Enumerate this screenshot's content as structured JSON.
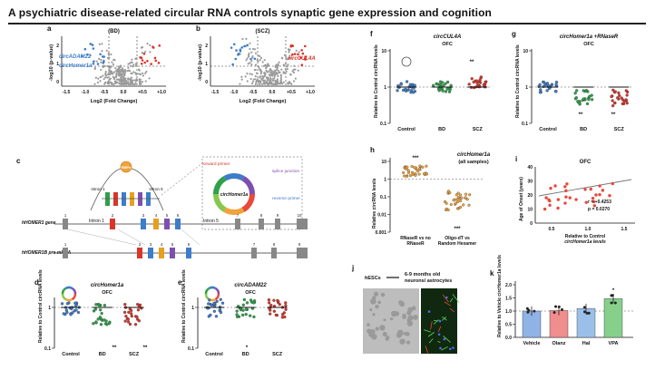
{
  "header": {
    "title": "A psychiatric disease-related circular RNA controls synaptic gene expression and cognition"
  },
  "panels": {
    "a": {
      "letter": "a",
      "label": "(BD)",
      "ylabel": "-log10 (p-value)",
      "xlabel": "Log2 (Fold Change)",
      "xticks": [
        "-1.5",
        "-1.0",
        "-0.5",
        "0.0",
        "+0.5",
        "+1.0"
      ],
      "yticks": [
        "2",
        "1",
        "0"
      ],
      "annotations": [
        "circADAM22",
        "circHomer1a"
      ]
    },
    "b": {
      "letter": "b",
      "label": "(SCZ)",
      "ylabel": "-log10 (p-value)",
      "xlabel": "Log2 (Fold Change)",
      "xticks": [
        "-1.5",
        "-1.0",
        "-0.5",
        "0.0",
        "+0.5",
        "+1.0"
      ],
      "yticks": [
        "2",
        "1",
        "0"
      ],
      "annotations": [
        "circCUL4A"
      ]
    },
    "c": {
      "letter": "c",
      "rbp": "RBPs",
      "intron1": "Intron 1",
      "intron5": "Intron 5",
      "ring_label": "circHomer1a",
      "forward_primer": "forward primer",
      "splice_junction": "splice junction",
      "reverse_primer": "reverse primer",
      "gene_label": "hHOMER1 gene",
      "pre_label": "hHOMER1B pre-mRNA",
      "exons_gene": [
        "1",
        "2",
        "3",
        "4",
        "5",
        "6",
        "7",
        "8",
        "9",
        "10"
      ],
      "exons_pre": [
        "1",
        "2",
        "3",
        "4",
        "5",
        "6",
        "7",
        "8",
        "9"
      ]
    },
    "d": {
      "letter": "d",
      "title": "circHomer1a",
      "subtitle": "OFC",
      "ylabel": "Relative to Control circRNA levels",
      "categories": [
        "Control",
        "BD",
        "SCZ"
      ],
      "yticks": [
        "1",
        "0.1"
      ],
      "stars": [
        "**",
        "**"
      ]
    },
    "e": {
      "letter": "e",
      "title": "circADAM22",
      "subtitle": "OFC",
      "ylabel": "Relative to Control circRNA levels",
      "categories": [
        "Control",
        "BD",
        "SCZ"
      ],
      "yticks": [
        "1",
        "0.1"
      ],
      "stars": [
        "*"
      ]
    },
    "f": {
      "letter": "f",
      "title": "circCUL4A",
      "subtitle": "OFC",
      "ylabel": "Relative to Control circRNA levels",
      "categories": [
        "Control",
        "BD",
        "SCZ"
      ],
      "yticks": [
        "10",
        "1",
        "0.1"
      ],
      "stars": [
        "**"
      ]
    },
    "g": {
      "letter": "g",
      "title": "circHomer1a +RNaseR",
      "subtitle": "OFC",
      "ylabel": "Relative to Control circRNA levels",
      "categories": [
        "Control",
        "BD",
        "SCZ"
      ],
      "yticks": [
        "10",
        "1",
        "0.1"
      ],
      "stars": [
        "**",
        "**"
      ]
    },
    "h": {
      "letter": "h",
      "title": "circHomer1a",
      "subtitle": "(all samples)",
      "ylabel": "Relative circRNA levels",
      "categories": [
        "RNaseR vs no RNaseR",
        "Oligo-dT vs Random Hexamer"
      ],
      "yticks": [
        "10",
        "1",
        "0.1",
        "0.01",
        "0.001"
      ],
      "stars": [
        "***",
        "***"
      ]
    },
    "i": {
      "letter": "i",
      "title": "OFC",
      "ylabel": "Age of Onset (years)",
      "xlabel": "Relative to Control circHomer1a levels",
      "xticks": [
        "0.5",
        "1.0",
        "1.5"
      ],
      "yticks": [
        "40",
        "30",
        "20",
        "10",
        "0"
      ],
      "stats": [
        "r = +0.4253",
        "p = 0.0270"
      ]
    },
    "j": {
      "letter": "j",
      "left_label": "hESCs",
      "right_label": "6-9 months old neurons/ astrocytes"
    },
    "k": {
      "letter": "k",
      "ylabel": "Relative to Vehicle circHomer1a levels",
      "categories": [
        "Vehicle",
        "Olanz",
        "Hal",
        "VPA"
      ],
      "yticks": [
        "2.0",
        "1.5",
        "1.0",
        "0.5",
        "0.0"
      ],
      "stars": [
        "*"
      ]
    }
  },
  "colors": {
    "control": "#3d7dc9",
    "bd": "#2ea14a",
    "scz": "#d9352a",
    "volcano_grey": "#9a9a9a",
    "vehicle": "#8fb3e6",
    "olanz": "#f08d8d",
    "hal": "#9ac0ea",
    "vpa": "#86d08c",
    "scatter": "#e8493a"
  }
}
